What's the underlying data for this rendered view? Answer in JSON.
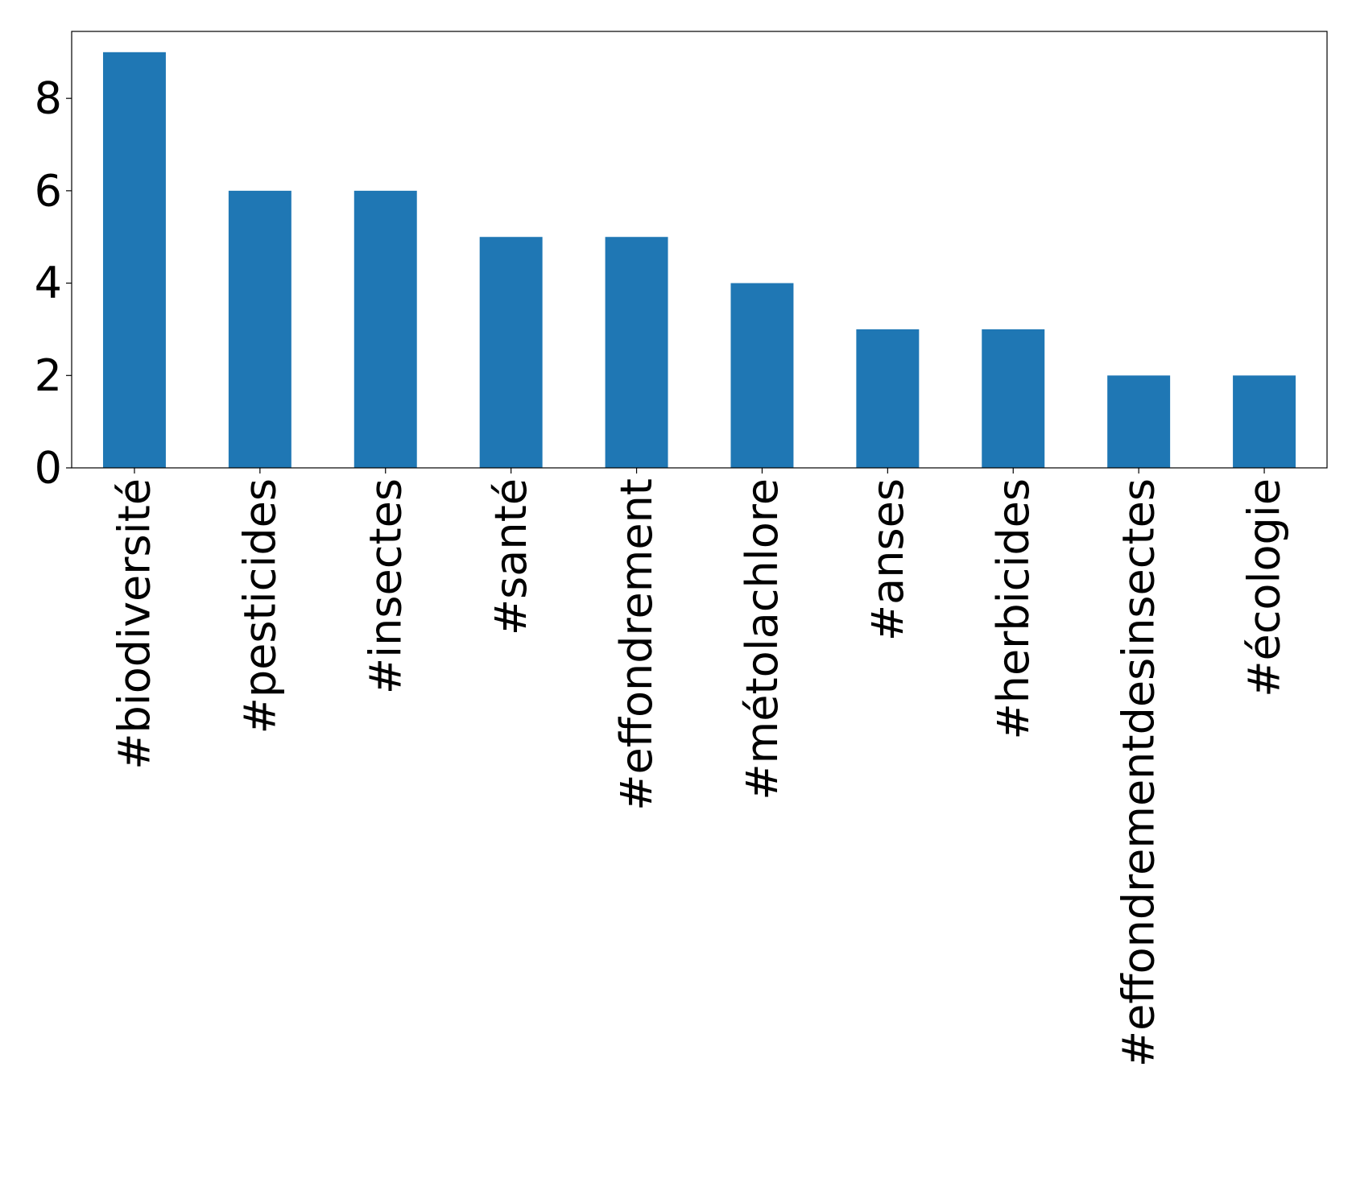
{
  "chart_data": {
    "type": "bar",
    "title": "",
    "xlabel": "",
    "ylabel": "",
    "categories": [
      "#biodiversité",
      "#pesticides",
      "#insectes",
      "#santé",
      "#effondrement",
      "#métolachlore",
      "#anses",
      "#herbicides",
      "#effondrementdesinsectes",
      "#écologie"
    ],
    "values": [
      9,
      6,
      6,
      5,
      5,
      4,
      3,
      3,
      2,
      2
    ],
    "ylim": [
      0,
      9.45
    ],
    "yticks": [
      0,
      2,
      4,
      6,
      8
    ],
    "grid": false,
    "bar_color": "#1f77b4"
  }
}
